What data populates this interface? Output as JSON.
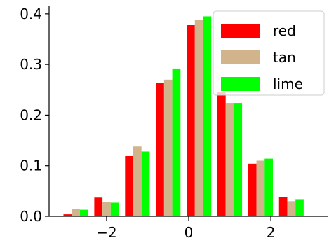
{
  "chart_data": {
    "type": "bar",
    "title": "",
    "xlabel": "",
    "ylabel": "",
    "xlim": [
      -3.4,
      3.4
    ],
    "ylim": [
      0,
      0.415
    ],
    "x": [
      -2.75,
      -2.0,
      -1.25,
      -0.5,
      0.25,
      1.0,
      1.75,
      2.5
    ],
    "bin_width": 0.6,
    "xticks": [
      -2,
      0,
      2
    ],
    "xtick_labels": [
      "−2",
      "0",
      "2"
    ],
    "yticks": [
      0.0,
      0.1,
      0.2,
      0.3,
      0.4
    ],
    "ytick_labels": [
      "0.0",
      "0.1",
      "0.2",
      "0.3",
      "0.4"
    ],
    "grid": false,
    "legend": "top-right",
    "series": [
      {
        "name": "red",
        "color": "#ff0000",
        "values": [
          0.004,
          0.037,
          0.119,
          0.264,
          0.379,
          0.246,
          0.104,
          0.038
        ]
      },
      {
        "name": "tan",
        "color": "#d2b48c",
        "values": [
          0.014,
          0.028,
          0.138,
          0.27,
          0.388,
          0.224,
          0.11,
          0.03
        ]
      },
      {
        "name": "lime",
        "color": "#00ff00",
        "values": [
          0.013,
          0.027,
          0.128,
          0.292,
          0.395,
          0.224,
          0.114,
          0.034
        ]
      }
    ]
  }
}
